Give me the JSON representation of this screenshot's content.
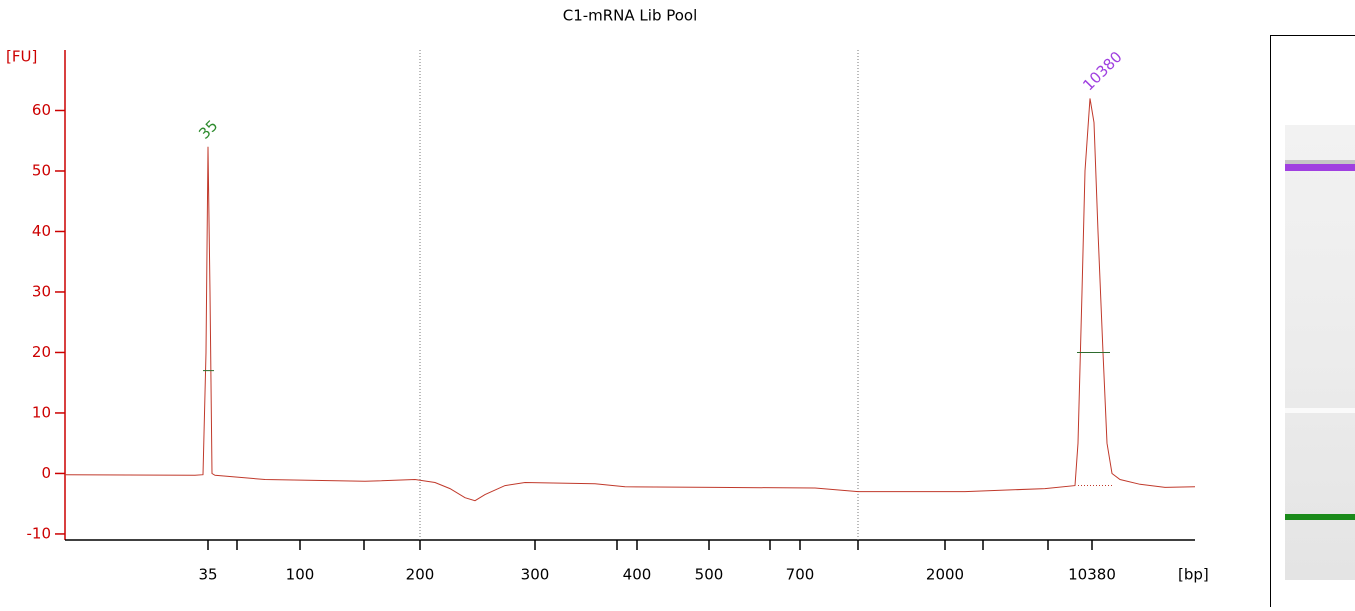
{
  "chart_data": {
    "type": "line",
    "title": "C1-mRNA Lib Pool",
    "y_label": "[FU]",
    "x_label": "[bp]",
    "color": "#c0392b",
    "axis_color": "#cc0000",
    "x": [
      0,
      130,
      138,
      141,
      143,
      145,
      147,
      150,
      200,
      300,
      350,
      370,
      385,
      400,
      410,
      420,
      440,
      460,
      530,
      560,
      650,
      750,
      793,
      900,
      980,
      1010,
      1013,
      1017,
      1020,
      1025,
      1027,
      1029,
      1033,
      1038,
      1042,
      1047,
      1055,
      1075,
      1100,
      1130
    ],
    "values": [
      -0.2,
      -0.3,
      -0.2,
      20,
      54,
      30,
      0,
      -0.3,
      -1,
      -1.3,
      -1,
      -1.5,
      -2.5,
      -4,
      -4.5,
      -3.5,
      -2,
      -1.5,
      -1.7,
      -2.2,
      -2.3,
      -2.4,
      -3,
      -3,
      -2.5,
      -2,
      5,
      30,
      50,
      62,
      60,
      58,
      40,
      20,
      5,
      0,
      -1,
      -1.8,
      -2.3,
      -2.2
    ],
    "xlim": [
      0,
      1130
    ],
    "ylim": [
      -11,
      70
    ],
    "yticks": [
      -10,
      0,
      10,
      20,
      30,
      40,
      50,
      60
    ],
    "xticks": [
      {
        "value": 143,
        "label": "35"
      },
      {
        "value": 235,
        "label": "100"
      },
      {
        "value": 355,
        "label": "200"
      },
      {
        "value": 470,
        "label": "300"
      },
      {
        "value": 572,
        "label": "400"
      },
      {
        "value": 644,
        "label": "500"
      },
      {
        "value": 735,
        "label": "700"
      },
      {
        "value": 880,
        "label": "2000"
      },
      {
        "value": 1027,
        "label": "10380"
      }
    ],
    "minor_xticks": [
      172,
      299,
      552,
      705,
      793,
      918,
      983
    ],
    "dashed_x": [
      355,
      793
    ],
    "peaks": [
      {
        "label": "35",
        "x": 143,
        "y": 55,
        "color": "#2e8b2e",
        "half_height": 17,
        "half_from": 138,
        "half_to": 149
      },
      {
        "label": "10380",
        "x": 1027,
        "y": 63,
        "color": "#a040e0",
        "half_height": 20,
        "half_from": 1012,
        "half_to": 1045
      }
    ],
    "baseline_segment": {
      "from": 1013,
      "to": 1047,
      "y": -2
    }
  }
}
